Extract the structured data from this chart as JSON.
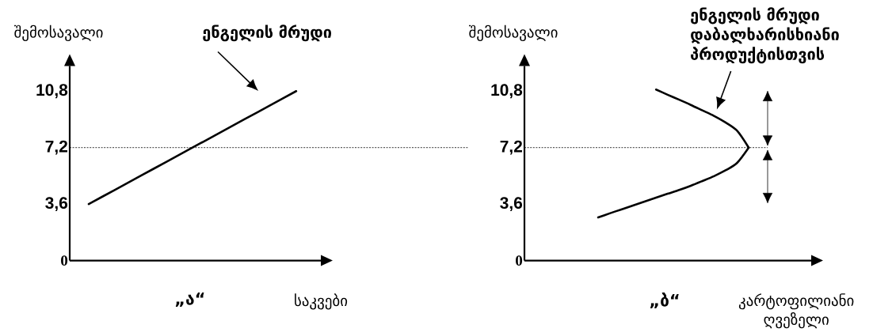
{
  "chart_data": [
    {
      "type": "line",
      "title": "„ა“",
      "xlabel": "საკვები",
      "ylabel": "შემოსავალი",
      "categories": [
        null,
        null,
        null,
        null,
        null,
        null,
        null,
        null,
        null
      ],
      "ylim": [
        0,
        12.4
      ],
      "yticks": [
        0,
        {
          "value": 3.6,
          "label": "3,6"
        },
        {
          "value": 7.2,
          "label": "7,2"
        },
        {
          "value": 10.8,
          "label": "10,8"
        }
      ],
      "series": [
        {
          "color": "#000000",
          "values": [
            3.6,
            4.5,
            5.4,
            6.3,
            7.2,
            8.1,
            9.0,
            9.9,
            10.8
          ]
        }
      ],
      "ref_lines": [
        {
          "axis": "y",
          "value": 7.2,
          "line_style": "dotted",
          "color": "#000000"
        }
      ],
      "annotations": [
        "ენგელის მრუდი"
      ]
    },
    {
      "type": "line",
      "title": "„ბ“",
      "xlabel": "კარტოფილიანი ღვეზელი",
      "ylabel": "შემოსავალი",
      "categories": [
        null,
        null,
        null,
        null,
        null,
        null,
        null,
        null,
        null,
        null,
        null,
        null,
        null,
        null
      ],
      "ylim": [
        0,
        12.4
      ],
      "yticks": [
        0,
        {
          "value": 3.6,
          "label": "3,6"
        },
        {
          "value": 7.2,
          "label": "7,2"
        },
        {
          "value": 10.8,
          "label": "10,8"
        }
      ],
      "series": [
        {
          "color": "#000000",
          "values": [
            2.75,
            3.01,
            3.26,
            3.51,
            3.76,
            4.01,
            4.26,
            4.5,
            4.77,
            5.07,
            5.38,
            5.75,
            6.23,
            7.2
          ]
        },
        {
          "color": "#000000",
          "values": [
            null,
            null,
            null,
            null,
            null,
            10.9,
            10.57,
            10.25,
            9.92,
            9.57,
            9.22,
            8.8,
            8.27,
            7.2
          ]
        }
      ],
      "ref_lines": [
        {
          "axis": "y",
          "value": 7.2,
          "line_style": "dotted",
          "color": "#000000"
        }
      ],
      "annotations": [
        "ენგელის მრუდი დაბალხარისხიანი პროდუქტისთვის"
      ]
    }
  ]
}
